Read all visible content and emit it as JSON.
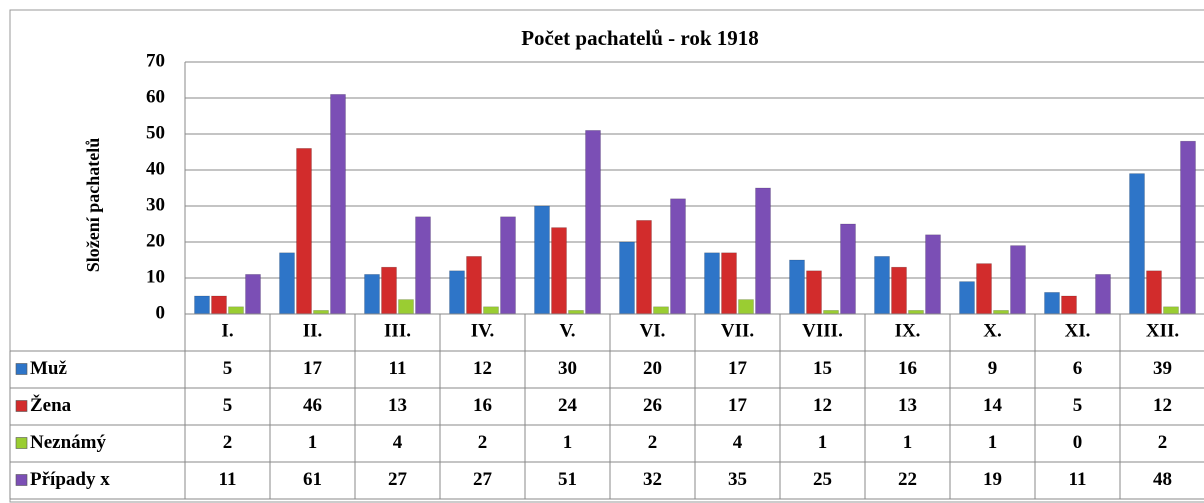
{
  "chart_data": {
    "type": "bar",
    "title": "Počet pachatelů - rok 1918",
    "y_label": "Složení  pachatelů",
    "categories": [
      "I.",
      "II.",
      "III.",
      "IV.",
      "V.",
      "VI.",
      "VII.",
      "VIII.",
      "IX.",
      "X.",
      "XI.",
      "XII."
    ],
    "series": [
      {
        "name": "Muž",
        "color": "#2e75c8",
        "values": [
          5,
          17,
          11,
          12,
          30,
          20,
          17,
          15,
          16,
          9,
          6,
          39
        ]
      },
      {
        "name": "Žena",
        "color": "#d22c2c",
        "values": [
          5,
          46,
          13,
          16,
          24,
          26,
          17,
          12,
          13,
          14,
          5,
          12
        ]
      },
      {
        "name": "Neznámý",
        "color": "#9acd32",
        "values": [
          2,
          1,
          4,
          2,
          1,
          2,
          4,
          1,
          1,
          1,
          0,
          2
        ]
      },
      {
        "name": "Případy x",
        "color": "#7b4fb5",
        "values": [
          11,
          61,
          27,
          27,
          51,
          32,
          35,
          25,
          22,
          19,
          11,
          48
        ]
      }
    ],
    "ylim": [
      0,
      70
    ],
    "yticks": [
      0,
      10,
      20,
      30,
      40,
      50,
      60,
      70
    ],
    "grid": true,
    "data_table": true
  }
}
